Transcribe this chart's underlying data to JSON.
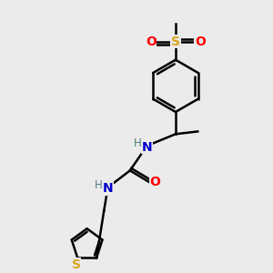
{
  "background_color": "#ebebeb",
  "atom_colors": {
    "C": "#000000",
    "H": "#708090",
    "N": "#0000CD",
    "O": "#FF0000",
    "S_sulfonyl": "#DAA520",
    "S_thio": "#DAA520"
  },
  "bond_color": "#000000",
  "bond_width": 1.8,
  "H_color": "#4d8080"
}
